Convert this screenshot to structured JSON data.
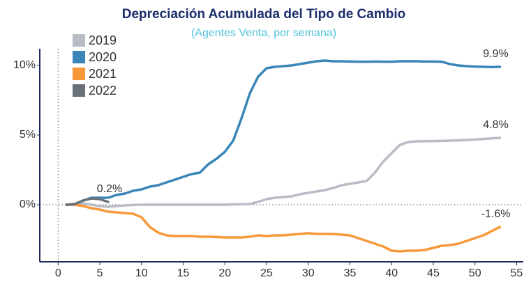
{
  "chart_data": {
    "type": "line",
    "title": "Depreciación Acumulada del Tipo de Cambio",
    "subtitle": "(Agentes Venta, por semana)",
    "x": [
      1,
      2,
      3,
      4,
      5,
      6,
      7,
      8,
      9,
      10,
      11,
      12,
      13,
      14,
      15,
      16,
      17,
      18,
      19,
      20,
      21,
      22,
      23,
      24,
      25,
      26,
      27,
      28,
      29,
      30,
      31,
      32,
      33,
      34,
      35,
      36,
      37,
      38,
      39,
      40,
      41,
      42,
      43,
      44,
      45,
      46,
      47,
      48,
      49,
      50,
      51,
      52,
      53
    ],
    "series": [
      {
        "name": "2019",
        "color": "#b8bcc4",
        "values": [
          0,
          0,
          0.1,
          0,
          -0.1,
          -0.15,
          -0.1,
          -0.05,
          -0.02,
          0,
          0,
          0,
          0,
          0,
          0,
          0,
          0,
          0,
          0,
          0,
          0.02,
          0.03,
          0.05,
          0.2,
          0.4,
          0.5,
          0.55,
          0.6,
          0.75,
          0.85,
          0.95,
          1.05,
          1.2,
          1.4,
          1.5,
          1.6,
          1.7,
          2.3,
          3.1,
          3.7,
          4.3,
          4.5,
          4.55,
          4.56,
          4.57,
          4.58,
          4.6,
          4.62,
          4.65,
          4.68,
          4.72,
          4.76,
          4.8
        ],
        "value_labels": [
          null,
          null,
          null,
          null,
          null,
          null,
          null,
          null,
          null,
          null,
          null,
          null,
          null,
          null,
          null,
          null,
          null,
          null,
          null,
          null,
          null,
          null,
          null,
          null,
          null,
          null,
          null,
          null,
          null,
          null,
          null,
          null,
          null,
          null,
          null,
          null,
          null,
          null,
          null,
          null,
          null,
          null,
          null,
          null,
          null,
          null,
          null,
          null,
          null,
          null,
          null,
          null,
          "4.8%"
        ]
      },
      {
        "name": "2020",
        "color": "#3a86b8",
        "values": [
          0,
          0,
          0.3,
          0.5,
          0.5,
          0.5,
          0.7,
          0.8,
          1.0,
          1.1,
          1.3,
          1.4,
          1.6,
          1.8,
          2.0,
          2.2,
          2.3,
          2.9,
          3.3,
          3.8,
          4.6,
          6.2,
          8.0,
          9.2,
          9.8,
          9.9,
          9.95,
          10.0,
          10.1,
          10.2,
          10.3,
          10.35,
          10.3,
          10.3,
          10.28,
          10.27,
          10.27,
          10.28,
          10.27,
          10.27,
          10.3,
          10.3,
          10.3,
          10.28,
          10.28,
          10.27,
          10.1,
          10.0,
          9.95,
          9.92,
          9.9,
          9.88,
          9.9
        ],
        "value_labels": [
          null,
          null,
          null,
          null,
          null,
          null,
          null,
          null,
          null,
          null,
          null,
          null,
          null,
          null,
          null,
          null,
          null,
          null,
          null,
          null,
          null,
          null,
          null,
          null,
          null,
          null,
          null,
          null,
          null,
          null,
          null,
          null,
          null,
          null,
          null,
          null,
          null,
          null,
          null,
          null,
          null,
          null,
          null,
          null,
          null,
          null,
          null,
          null,
          null,
          null,
          null,
          null,
          "9.9%"
        ]
      },
      {
        "name": "2021",
        "color": "#f7993a",
        "values": [
          0,
          0,
          -0.1,
          -0.25,
          -0.35,
          -0.5,
          -0.55,
          -0.6,
          -0.65,
          -0.9,
          -1.6,
          -2.0,
          -2.2,
          -2.25,
          -2.25,
          -2.25,
          -2.3,
          -2.3,
          -2.32,
          -2.35,
          -2.35,
          -2.35,
          -2.3,
          -2.2,
          -2.25,
          -2.2,
          -2.2,
          -2.15,
          -2.1,
          -2.05,
          -2.1,
          -2.1,
          -2.1,
          -2.15,
          -2.2,
          -2.4,
          -2.6,
          -2.8,
          -3.0,
          -3.3,
          -3.35,
          -3.3,
          -3.3,
          -3.25,
          -3.1,
          -2.95,
          -2.9,
          -2.8,
          -2.6,
          -2.4,
          -2.2,
          -1.9,
          -1.6
        ],
        "value_labels": [
          null,
          null,
          null,
          null,
          null,
          null,
          null,
          null,
          null,
          null,
          null,
          null,
          null,
          null,
          null,
          null,
          null,
          null,
          null,
          null,
          null,
          null,
          null,
          null,
          null,
          null,
          null,
          null,
          null,
          null,
          null,
          null,
          null,
          null,
          null,
          null,
          null,
          null,
          null,
          null,
          null,
          null,
          null,
          null,
          null,
          null,
          null,
          null,
          null,
          null,
          null,
          null,
          "-1.6%"
        ]
      },
      {
        "name": "2022",
        "color": "#6b7178",
        "values": [
          0,
          0.05,
          0.3,
          0.45,
          0.4,
          0.2,
          null,
          null,
          null,
          null,
          null,
          null,
          null,
          null,
          null,
          null,
          null,
          null,
          null,
          null,
          null,
          null,
          null,
          null,
          null,
          null,
          null,
          null,
          null,
          null,
          null,
          null,
          null,
          null,
          null,
          null,
          null,
          null,
          null,
          null,
          null,
          null,
          null,
          null,
          null,
          null,
          null,
          null,
          null,
          null,
          null,
          null,
          null
        ],
        "value_labels": [
          null,
          null,
          null,
          null,
          null,
          "0.2%",
          null,
          null,
          null,
          null,
          null,
          null,
          null,
          null,
          null,
          null,
          null,
          null,
          null,
          null,
          null,
          null,
          null,
          null,
          null,
          null,
          null,
          null,
          null,
          null,
          null,
          null,
          null,
          null,
          null,
          null,
          null,
          null,
          null,
          null,
          null,
          null,
          null,
          null,
          null,
          null,
          null,
          null,
          null,
          null,
          null,
          null,
          null
        ]
      }
    ],
    "xlim": [
      -2.2,
      55.8
    ],
    "xticks": [
      0,
      5,
      10,
      15,
      20,
      25,
      30,
      35,
      40,
      45,
      50,
      55
    ],
    "ylim": [
      -4.1,
      11.2
    ],
    "yticks": [
      {
        "value": 10,
        "label": "10%"
      },
      {
        "value": 5,
        "label": "5%"
      },
      {
        "value": 0,
        "label": "0%"
      }
    ],
    "legend": "top-left"
  }
}
